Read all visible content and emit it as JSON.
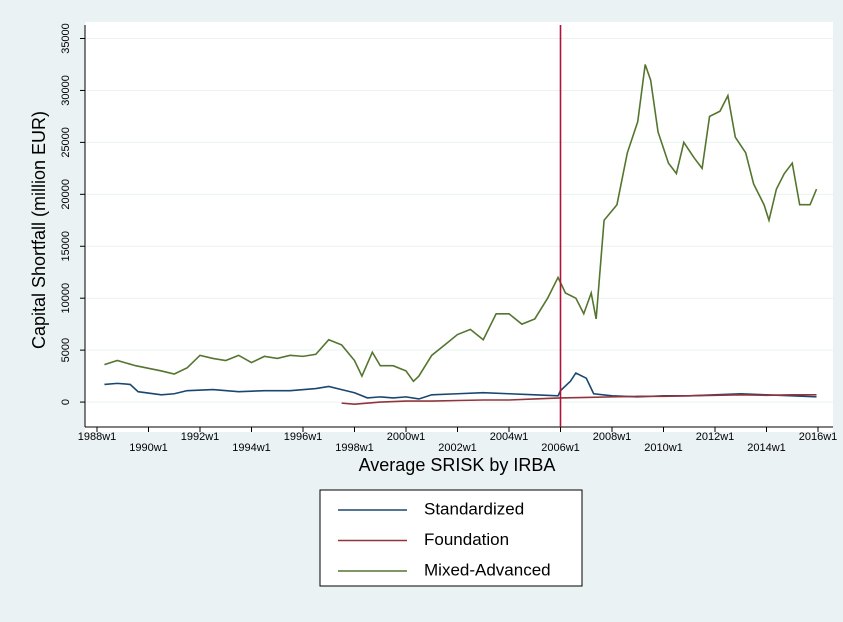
{
  "chart_data": {
    "type": "line",
    "xlabel": "Average SRISK by IRBA",
    "ylabel": "Capital Shortfall (million EUR)",
    "xlim": [
      "1988w1",
      "2016w1"
    ],
    "xticks": [
      "1988w1",
      "1990w1",
      "1992w1",
      "1994w1",
      "1996w1",
      "1998w1",
      "2000w1",
      "2002w1",
      "2004w1",
      "2006w1",
      "2008w1",
      "2010w1",
      "2012w1",
      "2014w1",
      "2016w1"
    ],
    "ylim": [
      -2400,
      36300
    ],
    "yticks": [
      0,
      5000,
      10000,
      15000,
      20000,
      25000,
      30000,
      35000
    ],
    "grid": true,
    "legend": "bottom",
    "vline": {
      "x": "2006w1",
      "color": "#b0123b"
    },
    "series": [
      {
        "name": "Standardized",
        "color": "#1a476f",
        "x": [
          "1988w16",
          "1988w42",
          "1989w16",
          "1989w32",
          "1990w27",
          "1991w1",
          "1991w27",
          "1992w27",
          "1993w27",
          "1994w27",
          "1995w27",
          "1996w27",
          "1997w1",
          "1997w27",
          "1998w1",
          "1998w27",
          "1999w1",
          "1999w27",
          "2000w1",
          "2000w27",
          "2001w1",
          "2002w1",
          "2003w1",
          "2004w1",
          "2005w1",
          "2005w48",
          "2006w1",
          "2006w21",
          "2006w32",
          "2007w1",
          "2007w16",
          "2008w1",
          "2009w1",
          "2010w1",
          "2011w1",
          "2012w1",
          "2013w1",
          "2014w1",
          "2015w1",
          "2015w50"
        ],
        "values": [
          1700,
          1800,
          1700,
          1000,
          700,
          800,
          1100,
          1200,
          1000,
          1100,
          1100,
          1300,
          1500,
          1200,
          900,
          400,
          500,
          400,
          500,
          300,
          700,
          800,
          900,
          800,
          700,
          600,
          1100,
          2000,
          2800,
          2300,
          800,
          600,
          500,
          600,
          600,
          700,
          800,
          700,
          600,
          500
        ]
      },
      {
        "name": "Foundation",
        "color": "#90353b",
        "x": [
          "1997w27",
          "1998w1",
          "1999w1",
          "2000w1",
          "2001w1",
          "2002w1",
          "2003w1",
          "2004w1",
          "2005w1",
          "2006w1",
          "2007w1",
          "2008w1",
          "2009w1",
          "2010w1",
          "2011w1",
          "2012w1",
          "2013w1",
          "2014w1",
          "2015w1",
          "2015w50"
        ],
        "values": [
          -100,
          -200,
          0,
          100,
          100,
          150,
          200,
          200,
          300,
          400,
          450,
          500,
          550,
          550,
          600,
          650,
          700,
          650,
          700,
          700
        ]
      },
      {
        "name": "Mixed-Advanced",
        "color": "#55752f",
        "x": [
          "1988w16",
          "1988w42",
          "1989w27",
          "1990w27",
          "1991w1",
          "1991w27",
          "1992w1",
          "1992w27",
          "1993w1",
          "1993w27",
          "1994w1",
          "1994w27",
          "1995w1",
          "1995w27",
          "1996w1",
          "1996w27",
          "1997w1",
          "1997w27",
          "1998w1",
          "1998w16",
          "1998w37",
          "1999w1",
          "1999w27",
          "2000w1",
          "2000w16",
          "2000w27",
          "2001w1",
          "2001w27",
          "2002w1",
          "2002w27",
          "2003w1",
          "2003w27",
          "2004w1",
          "2004w27",
          "2005w1",
          "2005w27",
          "2005w48",
          "2006w11",
          "2006w32",
          "2006w48",
          "2007w11",
          "2007w21",
          "2007w37",
          "2008w11",
          "2008w32",
          "2009w1",
          "2009w16",
          "2009w27",
          "2009w42",
          "2010w11",
          "2010w27",
          "2010w42",
          "2011w11",
          "2011w27",
          "2011w42",
          "2012w11",
          "2012w27",
          "2012w42",
          "2013w11",
          "2013w27",
          "2013w48",
          "2014w6",
          "2014w21",
          "2014w37",
          "2015w1",
          "2015w16",
          "2015w37",
          "2015w50"
        ],
        "values": [
          3600,
          4000,
          3500,
          3000,
          2700,
          3300,
          4500,
          4200,
          4000,
          4500,
          3800,
          4400,
          4200,
          4500,
          4400,
          4600,
          6000,
          5500,
          4000,
          2500,
          4800,
          3500,
          3500,
          3000,
          2000,
          2500,
          4500,
          5500,
          6500,
          7000,
          6000,
          8500,
          8500,
          7500,
          8000,
          10000,
          12000,
          10500,
          10000,
          8500,
          10500,
          8000,
          17500,
          19000,
          24000,
          27000,
          32500,
          31000,
          26000,
          23000,
          22000,
          25000,
          23500,
          22500,
          27500,
          28000,
          29500,
          25500,
          24000,
          21000,
          19000,
          17500,
          20500,
          22000,
          23000,
          19000,
          19000,
          20500
        ]
      }
    ]
  }
}
